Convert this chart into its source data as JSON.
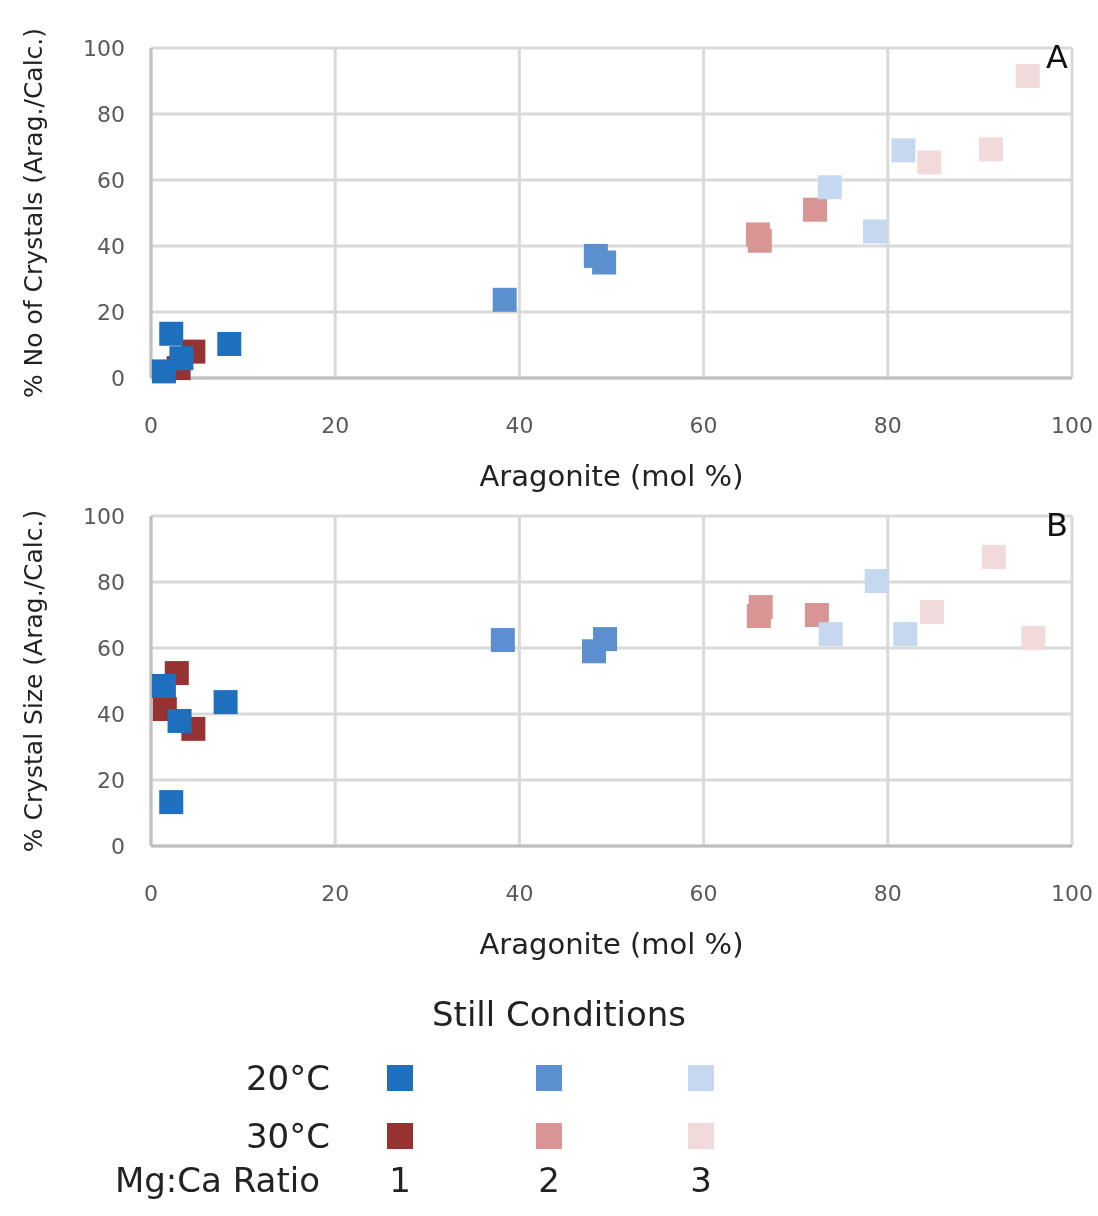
{
  "chart_data": [
    {
      "type": "scatter",
      "xlabel": "Aragonite (mol %)",
      "ylabel": "% No of Crystals (Arag./Calc.)",
      "xlim": [
        0,
        100
      ],
      "ylim": [
        0,
        100
      ],
      "xticks": [
        0,
        20,
        40,
        60,
        80,
        100
      ],
      "yticks": [
        0,
        20,
        40,
        60,
        80,
        100
      ],
      "grid": true,
      "marker": "square",
      "annotations": [
        "A"
      ],
      "series": [
        {
          "color": "#963232",
          "x": [
            4.6,
            3
          ],
          "values": [
            8,
            3
          ]
        },
        {
          "color": "#1f6fbf",
          "x": [
            2.2,
            3.3,
            1.4,
            8.5
          ],
          "values": [
            13.4,
            6,
            2,
            10.3
          ]
        },
        {
          "color": "#5b8fcf",
          "x": [
            38.4,
            48.3,
            49.2
          ],
          "values": [
            23.7,
            37,
            35
          ]
        },
        {
          "color": "#d99494",
          "x": [
            65.9,
            66.1,
            72.1
          ],
          "values": [
            43.5,
            41.6,
            51
          ]
        },
        {
          "color": "#c5d8ef",
          "x": [
            73.7,
            78.6,
            81.7
          ],
          "values": [
            57.8,
            44.4,
            69
          ]
        },
        {
          "color": "#f2dada",
          "x": [
            84.5,
            91.2,
            95.2
          ],
          "values": [
            65.3,
            69.3,
            91.5
          ]
        }
      ]
    },
    {
      "type": "scatter",
      "xlabel": "Aragonite (mol %)",
      "ylabel": "% Crystal Size (Arag./Calc.)",
      "xlim": [
        0,
        100
      ],
      "ylim": [
        0,
        100
      ],
      "xticks": [
        0,
        20,
        40,
        60,
        80,
        100
      ],
      "yticks": [
        0,
        20,
        40,
        60,
        80,
        100
      ],
      "grid": true,
      "marker": "square",
      "annotations": [
        "B"
      ],
      "series": [
        {
          "color": "#963232",
          "x": [
            2.8,
            1.5,
            4.6
          ],
          "values": [
            52.4,
            41.5,
            35.5
          ]
        },
        {
          "color": "#1f6fbf",
          "x": [
            1.4,
            3.1,
            8.1,
            2.2
          ],
          "values": [
            48.5,
            37.9,
            43.6,
            13.3
          ]
        },
        {
          "color": "#5b8fcf",
          "x": [
            38.2,
            48.1,
            49.3
          ],
          "values": [
            62.4,
            59,
            62.7
          ]
        },
        {
          "color": "#d99494",
          "x": [
            66.2,
            66,
            72.3
          ],
          "values": [
            72.4,
            69.7,
            70
          ]
        },
        {
          "color": "#c5d8ef",
          "x": [
            78.8,
            73.8,
            81.9
          ],
          "values": [
            80.3,
            64.2,
            64.2
          ]
        },
        {
          "color": "#f2dada",
          "x": [
            91.5,
            84.8,
            95.8
          ],
          "values": [
            87.6,
            70.9,
            63
          ]
        }
      ]
    },
    {
      "type": "other",
      "title": "Still Conditions",
      "annotations": [
        "20°C",
        "30°C",
        "Mg:Ca Ratio",
        "1",
        "2",
        "3"
      ],
      "colors": [
        "#1f6fbf",
        "#5b8fcf",
        "#c5d8ef",
        "#963232",
        "#d99494",
        "#f2dada"
      ]
    }
  ]
}
